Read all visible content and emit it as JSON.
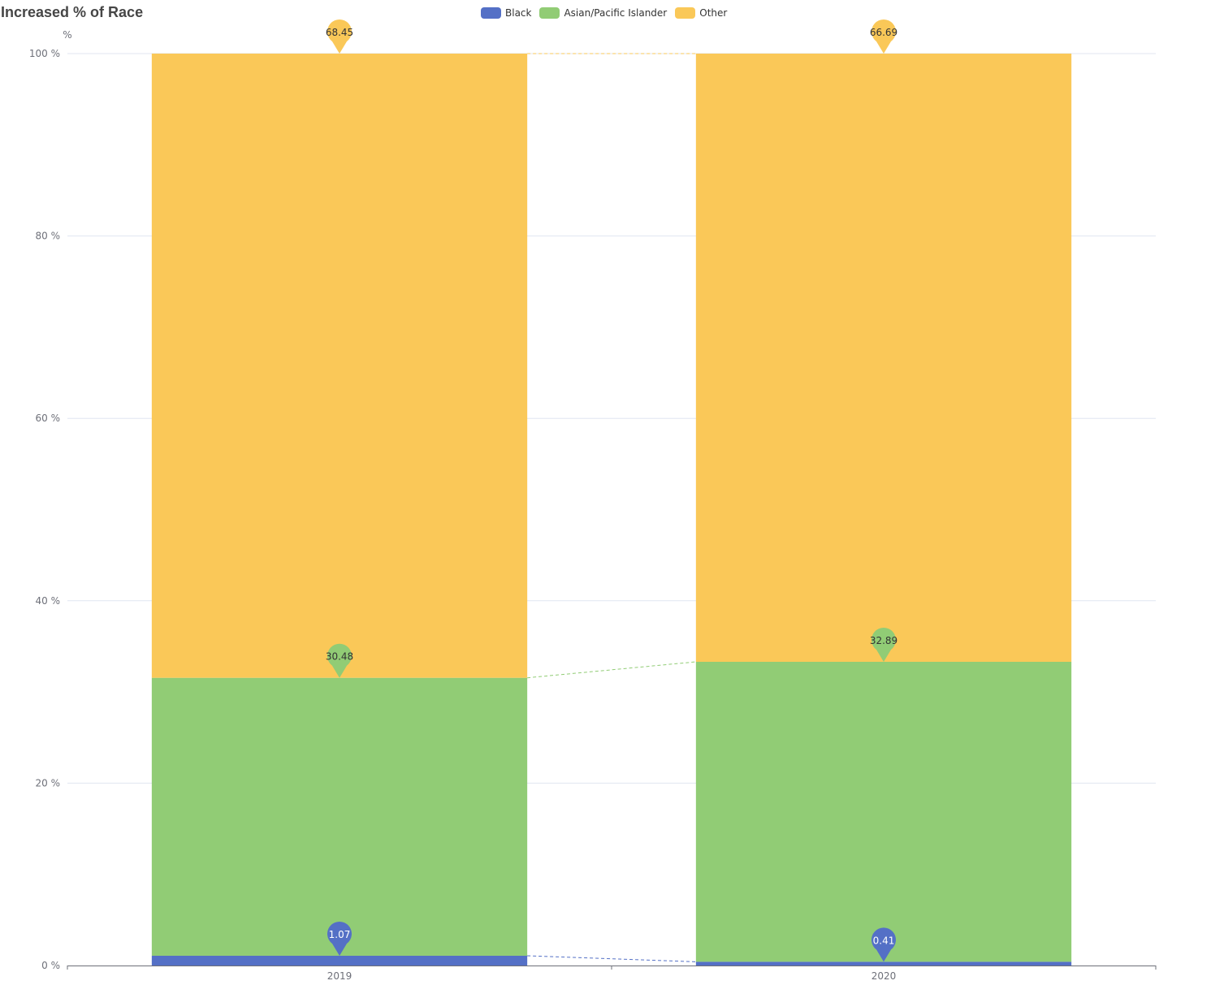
{
  "title": "Increased % of Race",
  "colors": {
    "Black": "#5470c6",
    "Asian/Pacific Islander": "#91cc75",
    "Other": "#fac858",
    "axis": "#6e7079",
    "grid": "#e0e6f1"
  },
  "legend": [
    "Black",
    "Asian/Pacific Islander",
    "Other"
  ],
  "chart_data": {
    "type": "bar",
    "stacked": true,
    "normalized_percent": true,
    "title": "Increased % of Race",
    "ylabel": "%",
    "xlabel": "",
    "categories": [
      "2019",
      "2020"
    ],
    "ylim": [
      0,
      100
    ],
    "yticks": [
      "0 %",
      "20 %",
      "40 %",
      "60 %",
      "80 %",
      "100 %"
    ],
    "legend_position": "top-center",
    "grid": true,
    "series": [
      {
        "name": "Black",
        "values": [
          1.07,
          0.41
        ],
        "labels": [
          "1.07",
          "0.41"
        ]
      },
      {
        "name": "Asian/Pacific Islander",
        "values": [
          30.48,
          32.89
        ],
        "labels": [
          "30.48",
          "32.89"
        ]
      },
      {
        "name": "Other",
        "values": [
          68.45,
          66.69
        ],
        "labels": [
          "68.45",
          "66.69"
        ]
      }
    ]
  }
}
